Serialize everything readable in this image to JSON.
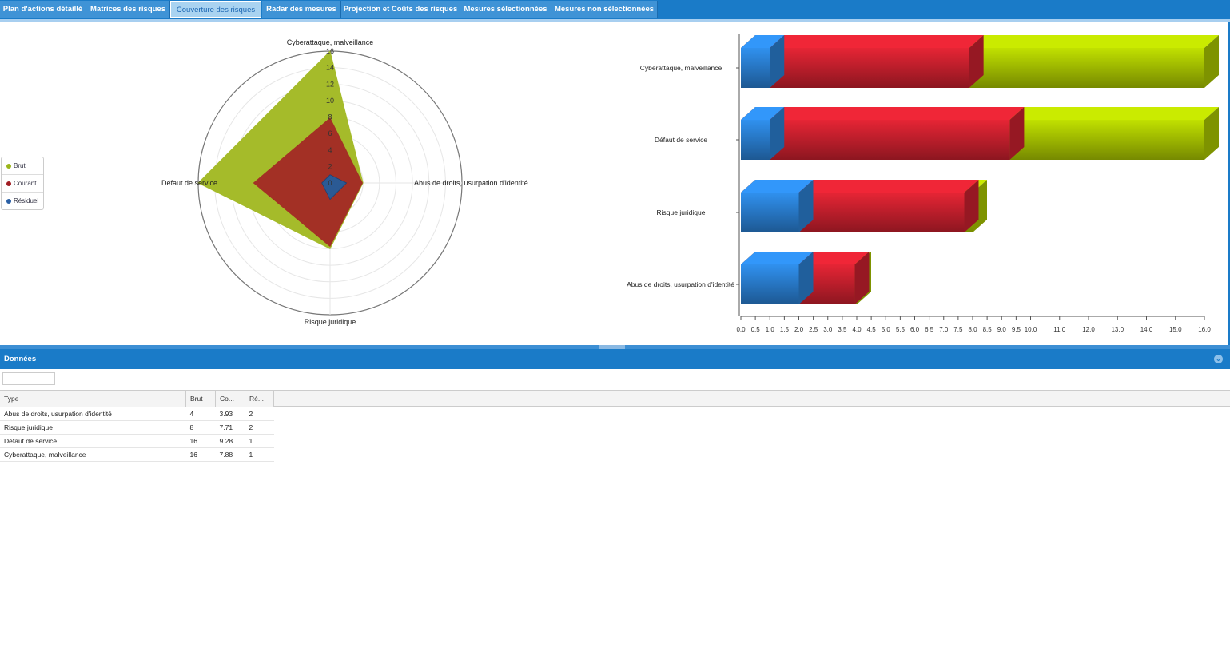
{
  "tabs": [
    {
      "label": "Plan d'actions détaillé",
      "active": false
    },
    {
      "label": "Matrices des risques",
      "active": false
    },
    {
      "label": "Couverture des risques",
      "active": true
    },
    {
      "label": "Radar des mesures",
      "active": false
    },
    {
      "label": "Projection et Coûts des risques",
      "active": false
    },
    {
      "label": "Mesures sélectionnées",
      "active": false
    },
    {
      "label": "Mesures non sélectionnées",
      "active": false
    }
  ],
  "legend": [
    {
      "label": "Brut",
      "color": "#9bb51a"
    },
    {
      "label": "Courant",
      "color": "#a01c22"
    },
    {
      "label": "Résiduel",
      "color": "#2a5fa5"
    }
  ],
  "chart_data": [
    {
      "type": "radar",
      "axes": [
        "Cyberattaque, malveillance",
        "Abus de droits, usurpation d'identité",
        "Risque juridique",
        "Défaut de service"
      ],
      "ticks": [
        0,
        2,
        4,
        6,
        8,
        10,
        12,
        14,
        16
      ],
      "range": [
        0,
        16
      ],
      "series": [
        {
          "name": "Brut",
          "color": "#a5bb2a",
          "values": [
            16,
            4,
            8,
            16
          ]
        },
        {
          "name": "Courant",
          "color": "#a33025",
          "values": [
            7.88,
            3.93,
            7.71,
            9.28
          ]
        },
        {
          "name": "Résiduel",
          "color": "#2b5a94",
          "values": [
            1,
            2,
            2,
            1
          ]
        }
      ]
    },
    {
      "type": "bar",
      "orientation": "horizontal",
      "style": "3d-overlapped",
      "categories": [
        "Cyberattaque, malveillance",
        "Défaut de service",
        "Risque juridique",
        "Abus de droits, usurpation d'identité"
      ],
      "xlim": [
        0,
        16
      ],
      "xticks": [
        "0.0",
        "0.5",
        "1.0",
        "1.5",
        "2.0",
        "2.5",
        "3.0",
        "3.5",
        "4.0",
        "4.5",
        "5.0",
        "5.5",
        "6.0",
        "6.5",
        "7.0",
        "7.5",
        "8.0",
        "8.5",
        "9.0",
        "9.5",
        "10.0",
        "11.0",
        "12.0",
        "13.0",
        "14.0",
        "15.0",
        "16.0"
      ],
      "series": [
        {
          "name": "Brut",
          "color": "#a8c400",
          "values": [
            16,
            16,
            8,
            4
          ]
        },
        {
          "name": "Courant",
          "color": "#c8202e",
          "values": [
            7.88,
            9.28,
            7.71,
            3.93
          ]
        },
        {
          "name": "Résiduel",
          "color": "#2a7ed0",
          "values": [
            1,
            1,
            2,
            2
          ]
        }
      ]
    }
  ],
  "panel": {
    "title": "Données",
    "filter_value": ""
  },
  "table": {
    "headers": [
      "Type",
      "Brut",
      "Co...",
      "Ré..."
    ],
    "rows": [
      [
        "Abus de droits, usurpation d'identité",
        "4",
        "3.93",
        "2"
      ],
      [
        "Risque juridique",
        "8",
        "7.71",
        "2"
      ],
      [
        "Défaut de service",
        "16",
        "9.28",
        "1"
      ],
      [
        "Cyberattaque, malveillance",
        "16",
        "7.88",
        "1"
      ]
    ]
  }
}
